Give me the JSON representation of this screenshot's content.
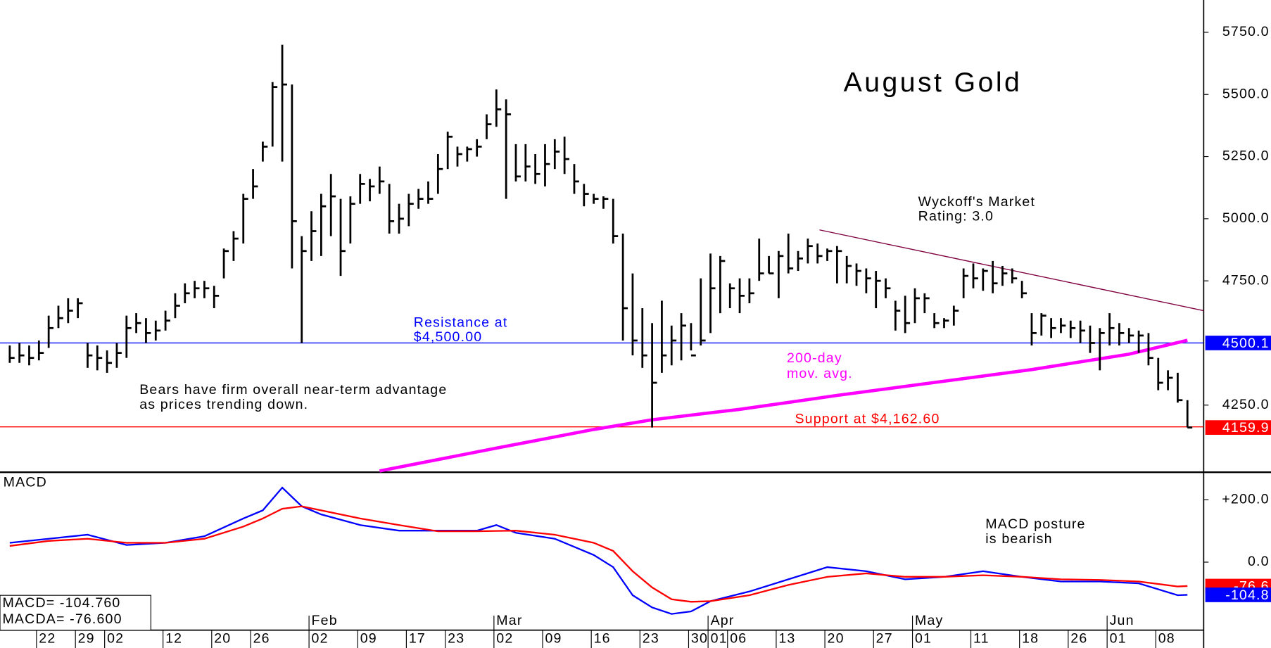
{
  "chart_data": [
    {
      "type": "ohlc",
      "title": "August Gold",
      "color": "#000000",
      "xlim": [
        -1,
        122.67
      ],
      "ylim": [
        3980,
        5880
      ],
      "yticks": [
        {
          "value": 5750,
          "label": "5750.0"
        },
        {
          "value": 5500,
          "label": "5500.0"
        },
        {
          "value": 5250,
          "label": "5250.0"
        },
        {
          "value": 5000,
          "label": "5000.0"
        },
        {
          "value": 4750,
          "label": "4750.0"
        },
        {
          "value": 4250,
          "label": "4250.0"
        }
      ],
      "high": [
        4490,
        4500,
        4490,
        4510,
        4610,
        4650,
        4680,
        4680,
        4500,
        4490,
        4470,
        4500,
        4610,
        4620,
        4600,
        4590,
        4630,
        4700,
        4740,
        4750,
        4750,
        4730,
        4880,
        4950,
        5100,
        5200,
        5310,
        5550,
        5700,
        5540,
        4930,
        5030,
        5100,
        5180,
        5080,
        5090,
        5180,
        5160,
        5210,
        5140,
        5060,
        5100,
        5120,
        5150,
        5260,
        5350,
        5290,
        5290,
        5320,
        5420,
        5520,
        5480,
        5300,
        5300,
        5260,
        5300,
        5320,
        5330,
        5220,
        5140,
        5100,
        5090,
        5080,
        4940,
        4780,
        4640,
        4580,
        4670,
        4570,
        4620,
        4580,
        4760,
        4860,
        4850,
        4740,
        4760,
        4760,
        4920,
        4850,
        4870,
        4940,
        4870,
        4920,
        4900,
        4880,
        4890,
        4850,
        4820,
        4800,
        4790,
        4760,
        4670,
        4690,
        4720,
        4700,
        4620,
        4600,
        4650,
        4800,
        4820,
        4800,
        4830,
        4810,
        4800,
        4750,
        4620,
        4620,
        4600,
        4600,
        4590,
        4590,
        4570,
        4560,
        4620,
        4580,
        4560,
        4550,
        4540,
        4440,
        4390,
        4380,
        4270
      ],
      "low": [
        4420,
        4420,
        4410,
        4430,
        4480,
        4560,
        4580,
        4600,
        4400,
        4390,
        4380,
        4400,
        4440,
        4540,
        4500,
        4510,
        4550,
        4600,
        4660,
        4680,
        4680,
        4640,
        4760,
        4830,
        4900,
        5080,
        5230,
        5290,
        5230,
        4800,
        4500,
        4830,
        4850,
        4930,
        4770,
        4900,
        5060,
        5070,
        5100,
        4940,
        4940,
        4970,
        5040,
        5060,
        5100,
        5200,
        5210,
        5230,
        5250,
        5320,
        5370,
        5080,
        5150,
        5150,
        5140,
        5130,
        5200,
        5180,
        5100,
        5050,
        5060,
        5040,
        4900,
        4510,
        4450,
        4400,
        4160,
        4380,
        4410,
        4430,
        4470,
        4490,
        4540,
        4620,
        4640,
        4620,
        4660,
        4750,
        4780,
        4680,
        4780,
        4790,
        4820,
        4820,
        4830,
        4740,
        4740,
        4730,
        4700,
        4640,
        4680,
        4550,
        4540,
        4580,
        4620,
        4560,
        4560,
        4570,
        4680,
        4720,
        4710,
        4700,
        4730,
        4740,
        4680,
        4490,
        4530,
        4520,
        4540,
        4520,
        4500,
        4460,
        4390,
        4490,
        4490,
        4500,
        4460,
        4410,
        4310,
        4310,
        4260,
        4160
      ],
      "close": [
        4440,
        4450,
        4440,
        4460,
        4560,
        4600,
        4630,
        4660,
        4450,
        4440,
        4420,
        4460,
        4560,
        4580,
        4540,
        4550,
        4590,
        4650,
        4700,
        4720,
        4720,
        4690,
        4870,
        4920,
        5080,
        5130,
        5290,
        5530,
        5540,
        4990,
        4870,
        4950,
        5050,
        5090,
        4870,
        5060,
        5140,
        5130,
        5150,
        4990,
        5000,
        5060,
        5080,
        5080,
        5200,
        5330,
        5260,
        5280,
        5290,
        5380,
        5440,
        5420,
        5170,
        5210,
        5180,
        5220,
        5270,
        5240,
        5150,
        5100,
        5080,
        5080,
        4930,
        4640,
        4510,
        4450,
        4340,
        4450,
        4510,
        4570,
        4450,
        4510,
        4720,
        4830,
        4720,
        4690,
        4700,
        4780,
        4780,
        4850,
        4800,
        4840,
        4890,
        4850,
        4870,
        4870,
        4810,
        4790,
        4760,
        4750,
        4720,
        4630,
        4580,
        4680,
        4680,
        4580,
        4590,
        4630,
        4770,
        4760,
        4790,
        4740,
        4780,
        4760,
        4700,
        4540,
        4610,
        4560,
        4570,
        4560,
        4550,
        4500,
        4540,
        4560,
        4540,
        4530,
        4530,
        4440,
        4340,
        4360,
        4270,
        4160
      ],
      "moving_average": {
        "label": [
          "200-day",
          "mov. avg."
        ],
        "color": "#ff00ff",
        "x": [
          38,
          50,
          60,
          66,
          75,
          85,
          95,
          105,
          115,
          121
        ],
        "values": [
          3985,
          4077,
          4152,
          4191,
          4233,
          4289,
          4341,
          4393,
          4455,
          4511
        ]
      },
      "trend_line": {
        "color": "#800040",
        "x": [
          83.2,
          122.67
        ],
        "values": [
          4955,
          4630
        ]
      },
      "resistance": {
        "value": 4500,
        "color": "#0000ff",
        "label": [
          "Resistance at",
          "$4,500.00"
        ]
      },
      "support": {
        "value": 4162.6,
        "color": "#ff0000",
        "label": [
          "Support at $4,162.60"
        ]
      },
      "rating": [
        "Wyckoff's Market",
        "Rating: 3.0"
      ],
      "comment": [
        "Bears have firm overall near-term advantage",
        "as prices trending down."
      ],
      "price_tags": [
        {
          "value": 4500.1,
          "color": "#0000ff"
        },
        {
          "value": 4159.9,
          "color": "#ff0000"
        }
      ]
    },
    {
      "type": "line",
      "title": "MACD",
      "xlim": [
        -1,
        122.67
      ],
      "ylim": [
        -218,
        283
      ],
      "yticks": [
        {
          "value": 200,
          "label": "+200.0"
        },
        {
          "value": 0,
          "label": "0.0"
        }
      ],
      "x": [
        0,
        4,
        8,
        12,
        16,
        20,
        24,
        26,
        28,
        30,
        32,
        36,
        40,
        44,
        48,
        50,
        52,
        56,
        60,
        62,
        64,
        66,
        68,
        70,
        72,
        76,
        80,
        84,
        88,
        92,
        96,
        100,
        104,
        108,
        112,
        116,
        120,
        121
      ],
      "series": [
        {
          "color": "#0000ff",
          "values": [
            62,
            75,
            88,
            55,
            62,
            83,
            140,
            166,
            239,
            179,
            153,
            119,
            101,
            101,
            101,
            119,
            94,
            75,
            23,
            -16,
            -106,
            -145,
            -166,
            -158,
            -125,
            -94,
            -55,
            -16,
            -29,
            -55,
            -47,
            -29,
            -47,
            -62,
            -62,
            -68,
            -106,
            -104.76
          ]
        },
        {
          "color": "#ff0000",
          "values": [
            52,
            68,
            75,
            62,
            62,
            75,
            114,
            140,
            171,
            179,
            166,
            140,
            119,
            99,
            99,
            100,
            101,
            88,
            62,
            36,
            -29,
            -81,
            -119,
            -127,
            -125,
            -106,
            -73,
            -47,
            -36,
            -47,
            -47,
            -42,
            -47,
            -55,
            -57,
            -62,
            -78,
            -76.6
          ]
        }
      ],
      "readout": [
        "MACD= -104.760",
        "MACDA= -76.600"
      ],
      "annotation": [
        "MACD posture",
        "is bearish"
      ],
      "price_tags": [
        {
          "value": -76.6,
          "color": "#ff0000"
        },
        {
          "value": -104.8,
          "color": "#0000ff"
        }
      ],
      "xticks": [
        {
          "value": 4,
          "label": "22"
        },
        {
          "value": 8,
          "label": "29"
        },
        {
          "value": 11,
          "label": "02"
        },
        {
          "value": 17,
          "label": "12"
        },
        {
          "value": 22,
          "label": "20"
        },
        {
          "value": 26,
          "label": "26"
        },
        {
          "value": 32,
          "label": "02"
        },
        {
          "value": 37,
          "label": "09"
        },
        {
          "value": 42,
          "label": "17"
        },
        {
          "value": 46,
          "label": "23"
        },
        {
          "value": 51,
          "label": "02"
        },
        {
          "value": 56,
          "label": "09"
        },
        {
          "value": 61,
          "label": "16"
        },
        {
          "value": 66,
          "label": "23"
        },
        {
          "value": 71,
          "label": "30"
        },
        {
          "value": 73,
          "label": "01"
        },
        {
          "value": 75,
          "label": "06"
        },
        {
          "value": 80,
          "label": "13"
        },
        {
          "value": 85,
          "label": "20"
        },
        {
          "value": 90,
          "label": "27"
        },
        {
          "value": 94,
          "label": "01"
        },
        {
          "value": 100,
          "label": "11"
        },
        {
          "value": 105,
          "label": "18"
        },
        {
          "value": 110,
          "label": "26"
        },
        {
          "value": 114,
          "label": "01"
        },
        {
          "value": 119,
          "label": "08"
        }
      ],
      "month_ticks": [
        {
          "value": 32,
          "label": "Feb"
        },
        {
          "value": 51,
          "label": "Mar"
        },
        {
          "value": 73,
          "label": "Apr"
        },
        {
          "value": 94,
          "label": "May"
        },
        {
          "value": 114,
          "label": "Jun"
        }
      ]
    }
  ]
}
